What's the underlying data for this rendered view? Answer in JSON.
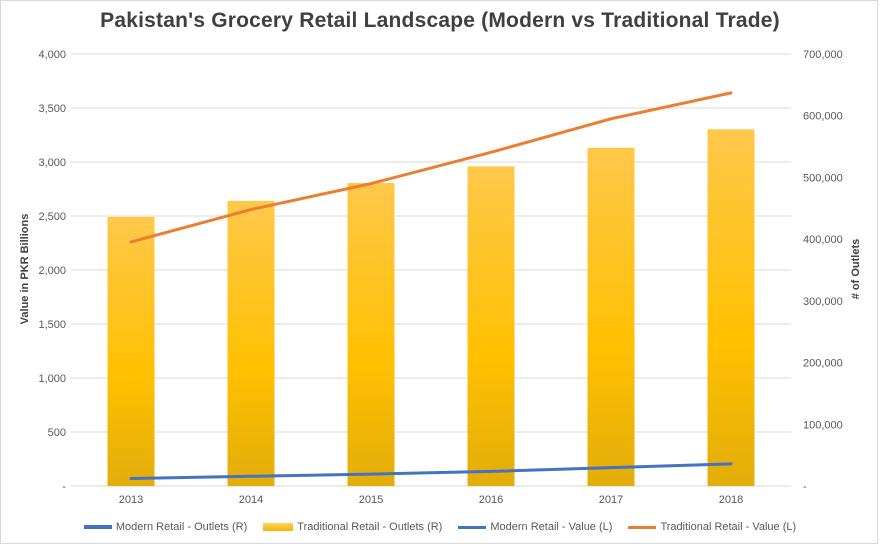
{
  "chart_data": {
    "type": "bar+line",
    "title": "Pakistan's  Grocery  Retail  Landscape  (Modern  vs  Traditional  Trade)",
    "ylabel_left": "Value in PKR Billions",
    "ylabel_right": "# of Outlets",
    "categories": [
      "2013",
      "2014",
      "2015",
      "2016",
      "2017",
      "2018"
    ],
    "y_left": {
      "min": 0,
      "max": 4000,
      "ticks": [
        "-",
        "500",
        "1,000",
        "1,500",
        "2,000",
        "2,500",
        "3,000",
        "3,500",
        "4,000"
      ]
    },
    "y_right": {
      "min": 0,
      "max": 700000,
      "ticks": [
        "-",
        "100,000",
        "200,000",
        "300,000",
        "400,000",
        "500,000",
        "600,000",
        "700,000"
      ]
    },
    "grid": true,
    "legend_position": "bottom",
    "series": [
      {
        "name": "Modern Retail - Outlets (R)",
        "kind": "bar",
        "axis": "right",
        "color": "#4472c4",
        "values": [
          0,
          0,
          0,
          0,
          0,
          0
        ]
      },
      {
        "name": "Traditional Retail - Outlets (R)",
        "kind": "bar",
        "axis": "right",
        "color": "#ffc000",
        "values": [
          436000,
          462000,
          491000,
          518000,
          548000,
          578000
        ]
      },
      {
        "name": "Modern Retail - Value (L)",
        "kind": "line",
        "axis": "left",
        "color": "#4472c4",
        "values": [
          70,
          90,
          110,
          135,
          170,
          205
        ]
      },
      {
        "name": "Traditional Retail - Value (L)",
        "kind": "line",
        "axis": "left",
        "color": "#ed7d31",
        "values": [
          2260,
          2560,
          2800,
          3090,
          3400,
          3640
        ]
      }
    ]
  }
}
